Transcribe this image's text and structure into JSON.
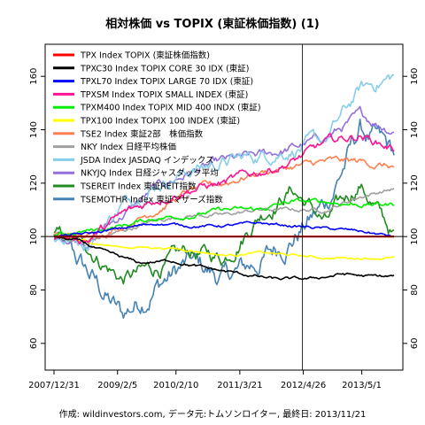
{
  "chart_data": {
    "type": "line",
    "title": "相対株価 vs TOPIX (東証株価指数) (1)",
    "caption": "作成: wildinvestors.com, データ元:トムソンロイター, 最終日: 2013/11/21",
    "xlabel": "",
    "ylabel": "",
    "x_tick_labels": [
      "2007/12/31",
      "2009/2/5",
      "2010/2/10",
      "2011/3/21",
      "2012/4/26",
      "2013/5/1"
    ],
    "x_tick_dates": [
      "2007-12-31",
      "2009-02-05",
      "2010-02-10",
      "2011-03-21",
      "2012-04-26",
      "2013-05-01"
    ],
    "x_range": [
      "2007-12-31",
      "2013-11-21"
    ],
    "y_ticks": [
      60,
      80,
      100,
      120,
      140,
      160
    ],
    "ylim": [
      50,
      172
    ],
    "reference_line": {
      "y": 100,
      "color": "#000000"
    },
    "marker_date": "2012-04-20",
    "legend_position": "top-left",
    "series": [
      {
        "name": "TPX Index TOPIX (東証株価指数)",
        "color": "#ff0000",
        "values": [
          [
            0,
            100
          ],
          [
            0.3,
            100
          ],
          [
            0.6,
            100
          ],
          [
            1.0,
            100
          ]
        ]
      },
      {
        "name": "TPXC30 Index TOPIX CORE 30 IDX (東証)",
        "color": "#000000",
        "values": [
          [
            0,
            100
          ],
          [
            0.08,
            98
          ],
          [
            0.15,
            94
          ],
          [
            0.25,
            90
          ],
          [
            0.35,
            91
          ],
          [
            0.45,
            88
          ],
          [
            0.55,
            86
          ],
          [
            0.65,
            84
          ],
          [
            0.75,
            84
          ],
          [
            0.85,
            86
          ],
          [
            0.93,
            85
          ],
          [
            1.0,
            85
          ]
        ]
      },
      {
        "name": "TPXL70 Index TOPIX LARGE 70 IDX (東証)",
        "color": "#0000ff",
        "values": [
          [
            0,
            100
          ],
          [
            0.1,
            101
          ],
          [
            0.2,
            103
          ],
          [
            0.3,
            105
          ],
          [
            0.4,
            104
          ],
          [
            0.5,
            104
          ],
          [
            0.6,
            105
          ],
          [
            0.7,
            104
          ],
          [
            0.8,
            103
          ],
          [
            0.9,
            102
          ],
          [
            1.0,
            100
          ]
        ]
      },
      {
        "name": "TPXSM Index TOPIX SMALL INDEX (東証)",
        "color": "#ff1493",
        "values": [
          [
            0,
            100
          ],
          [
            0.1,
            99
          ],
          [
            0.2,
            108
          ],
          [
            0.3,
            114
          ],
          [
            0.4,
            118
          ],
          [
            0.5,
            120
          ],
          [
            0.6,
            124
          ],
          [
            0.7,
            128
          ],
          [
            0.8,
            135
          ],
          [
            0.9,
            138
          ],
          [
            1.0,
            133
          ]
        ]
      },
      {
        "name": "TPXM400 Index TOPIX MID 400 INDX (東証)",
        "color": "#00ee00",
        "values": [
          [
            0,
            100
          ],
          [
            0.1,
            102
          ],
          [
            0.2,
            104
          ],
          [
            0.3,
            107
          ],
          [
            0.4,
            108
          ],
          [
            0.5,
            110
          ],
          [
            0.6,
            110
          ],
          [
            0.7,
            113
          ],
          [
            0.8,
            113
          ],
          [
            0.9,
            112
          ],
          [
            1.0,
            112
          ]
        ]
      },
      {
        "name": "TPX100 Index TOPIX 100 INDEX (東証)",
        "color": "#ffff00",
        "values": [
          [
            0,
            100
          ],
          [
            0.1,
            98
          ],
          [
            0.2,
            96
          ],
          [
            0.3,
            96
          ],
          [
            0.4,
            95
          ],
          [
            0.5,
            93
          ],
          [
            0.6,
            94
          ],
          [
            0.7,
            93
          ],
          [
            0.8,
            92
          ],
          [
            0.9,
            92
          ],
          [
            1.0,
            92
          ]
        ]
      },
      {
        "name": "TSE2 Index 東証2部　株価指数",
        "color": "#ff7f50",
        "values": [
          [
            0,
            100
          ],
          [
            0.1,
            100
          ],
          [
            0.2,
            104
          ],
          [
            0.3,
            110
          ],
          [
            0.4,
            117
          ],
          [
            0.5,
            120
          ],
          [
            0.6,
            124
          ],
          [
            0.7,
            126
          ],
          [
            0.8,
            128
          ],
          [
            0.9,
            128
          ],
          [
            1.0,
            126
          ]
        ]
      },
      {
        "name": "NKY Index 日経平均株価",
        "color": "#a0a0a0",
        "values": [
          [
            0,
            100
          ],
          [
            0.1,
            98
          ],
          [
            0.2,
            102
          ],
          [
            0.3,
            106
          ],
          [
            0.4,
            108
          ],
          [
            0.5,
            108
          ],
          [
            0.6,
            110
          ],
          [
            0.7,
            110
          ],
          [
            0.8,
            110
          ],
          [
            0.9,
            115
          ],
          [
            1.0,
            118
          ]
        ]
      },
      {
        "name": "JSDA Index JASDAQ インデックス",
        "color": "#87ceeb",
        "values": [
          [
            0,
            100
          ],
          [
            0.1,
            98
          ],
          [
            0.2,
            112
          ],
          [
            0.3,
            120
          ],
          [
            0.4,
            125
          ],
          [
            0.5,
            128
          ],
          [
            0.6,
            130
          ],
          [
            0.7,
            133
          ],
          [
            0.8,
            136
          ],
          [
            0.9,
            155
          ],
          [
            1.0,
            160
          ]
        ]
      },
      {
        "name": "NKYJQ Index 日経ジャスダック平均",
        "color": "#9370db",
        "values": [
          [
            0,
            100
          ],
          [
            0.1,
            99
          ],
          [
            0.2,
            108
          ],
          [
            0.3,
            118
          ],
          [
            0.4,
            124
          ],
          [
            0.5,
            128
          ],
          [
            0.6,
            130
          ],
          [
            0.7,
            133
          ],
          [
            0.8,
            137
          ],
          [
            0.9,
            145
          ],
          [
            1.0,
            140
          ]
        ]
      },
      {
        "name": "TSEREIT Index 東証REIT指数",
        "color": "#228b22",
        "values": [
          [
            0,
            100
          ],
          [
            0.1,
            96
          ],
          [
            0.2,
            84
          ],
          [
            0.3,
            88
          ],
          [
            0.4,
            94
          ],
          [
            0.5,
            92
          ],
          [
            0.6,
            108
          ],
          [
            0.7,
            118
          ],
          [
            0.8,
            105
          ],
          [
            0.9,
            120
          ],
          [
            1.0,
            100
          ]
        ]
      },
      {
        "name": "TSEMOTHR Index 東証マザーズ指数",
        "color": "#4682b4",
        "values": [
          [
            0,
            100
          ],
          [
            0.1,
            86
          ],
          [
            0.2,
            70
          ],
          [
            0.3,
            82
          ],
          [
            0.4,
            90
          ],
          [
            0.5,
            84
          ],
          [
            0.6,
            90
          ],
          [
            0.7,
            100
          ],
          [
            0.8,
            112
          ],
          [
            0.9,
            140
          ],
          [
            1.0,
            130
          ]
        ]
      }
    ]
  }
}
